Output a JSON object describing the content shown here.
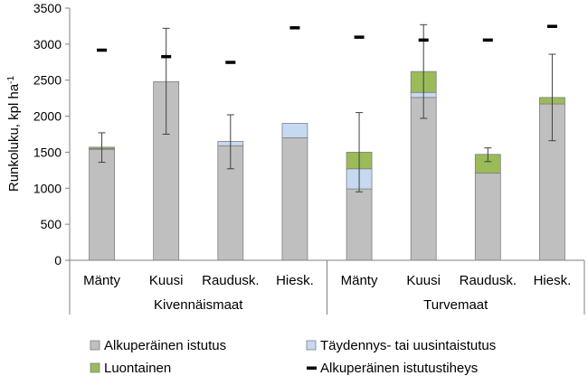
{
  "chart_data": {
    "type": "bar",
    "stacked": true,
    "ylabel": "Runkoluku, kpl ha",
    "ylabel_sup": "-1",
    "ylim": [
      0,
      3500
    ],
    "yticks": [
      0,
      500,
      1000,
      1500,
      2000,
      2500,
      3000,
      3500
    ],
    "categories": [
      "Mänty",
      "Kuusi",
      "Raudusk.",
      "Hiesk.",
      "Mänty",
      "Kuusi",
      "Raudusk.",
      "Hiesk."
    ],
    "groups": [
      {
        "label": "Kivennäismaat",
        "start": 0,
        "end": 3
      },
      {
        "label": "Turvemaat",
        "start": 4,
        "end": 7
      }
    ],
    "series": [
      {
        "name": "Alkuperäinen istutus",
        "color": "#bfbfbf",
        "values": [
          1540,
          2480,
          1590,
          1700,
          990,
          2260,
          1210,
          2170
        ]
      },
      {
        "name": "Täydennys- tai uusintaistutus",
        "color": "#c5d9f1",
        "values": [
          10,
          0,
          60,
          200,
          280,
          70,
          0,
          0
        ]
      },
      {
        "name": "Luontainen",
        "color": "#9bbb59",
        "values": [
          20,
          0,
          0,
          0,
          230,
          290,
          260,
          90
        ]
      }
    ],
    "error_bars": [
      {
        "low": 1360,
        "high": 1770
      },
      {
        "low": 1750,
        "high": 3220
      },
      {
        "low": 1270,
        "high": 2020
      },
      null,
      {
        "low": 950,
        "high": 2050
      },
      {
        "low": 1970,
        "high": 3270
      },
      {
        "low": 1370,
        "high": 1560
      },
      {
        "low": 1660,
        "high": 2860
      }
    ],
    "markers": {
      "name": "Alkuperäinen istutustiheys",
      "color": "#000000",
      "values": [
        2920,
        2830,
        2750,
        3230,
        3100,
        3060,
        3060,
        3250
      ]
    },
    "legend_position": "bottom"
  }
}
